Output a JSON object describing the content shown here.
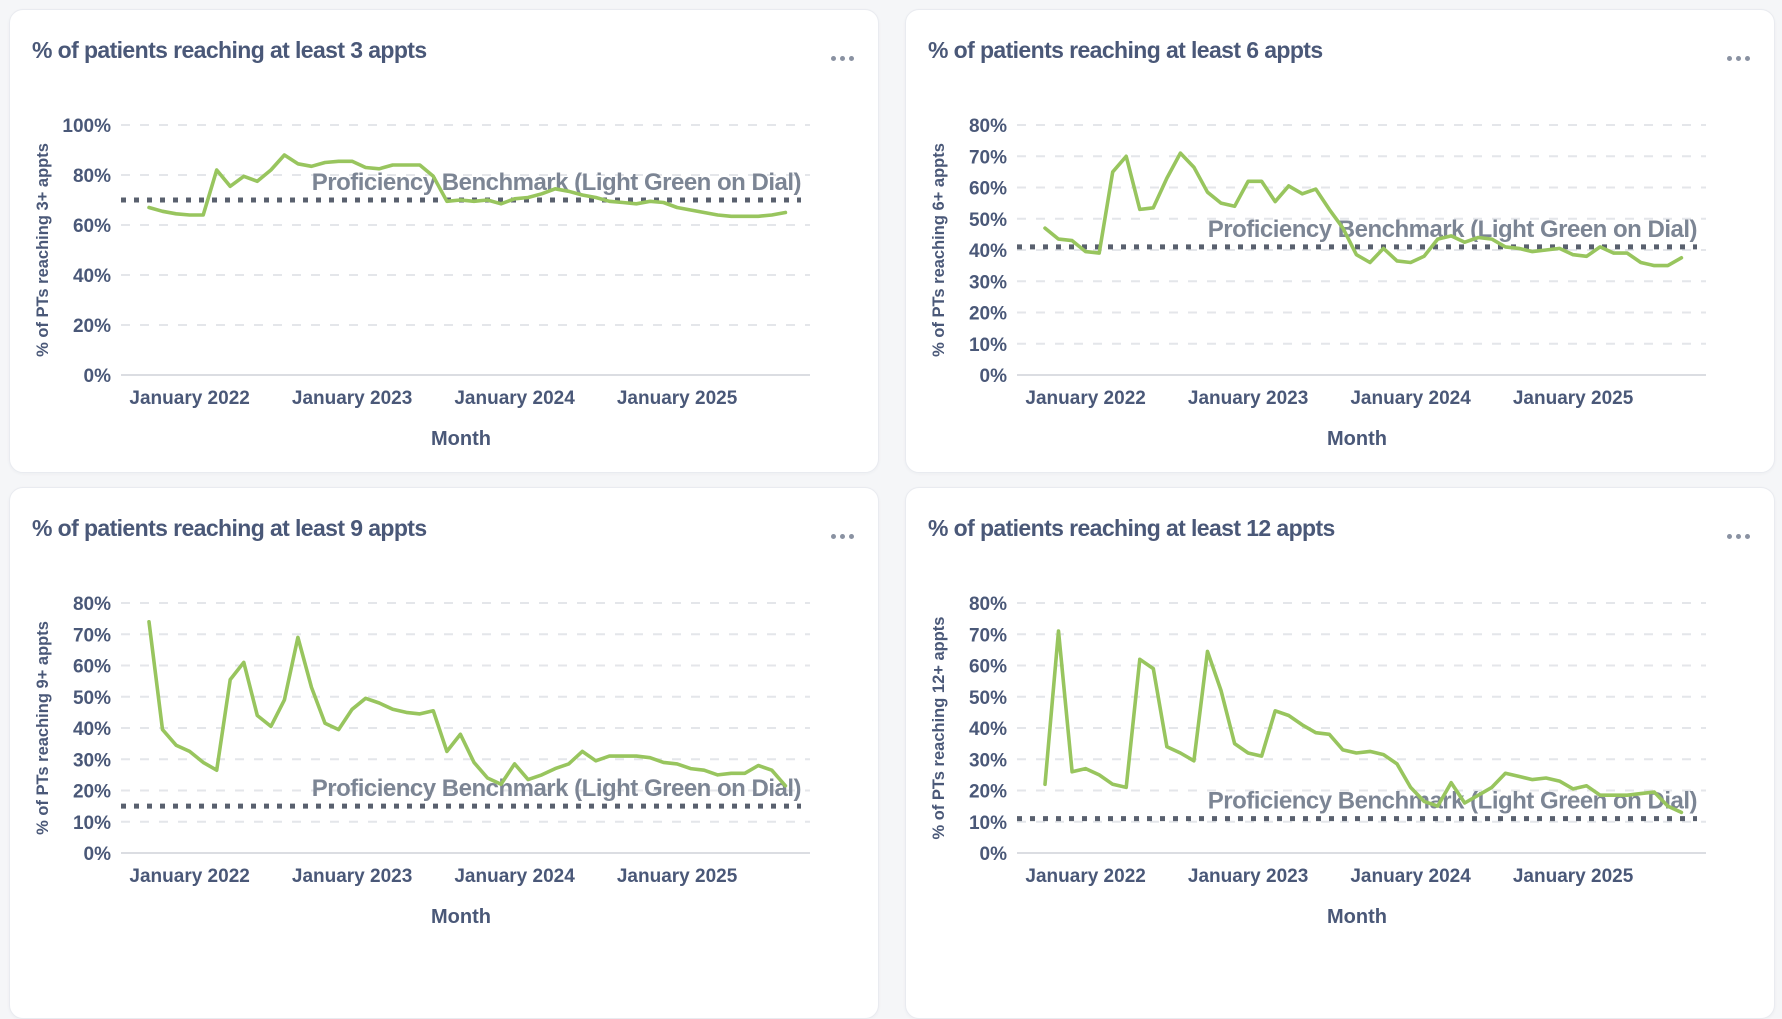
{
  "page": {
    "background": "#f5f6f8",
    "layout": "2x2-card-grid"
  },
  "colors": {
    "accent_line": "#98c55e",
    "heading_text": "#4a5878",
    "axis_text": "#4a5878",
    "benchmark_text": "#7c8594",
    "benchmark_dotted_line": "#59606e",
    "gridline": "#e4e6ea",
    "baseline": "#dbdde2",
    "card_background": "#ffffff",
    "menu_dots": "#8a92a2"
  },
  "cards": [
    {
      "title": "% of patients reaching at least 3 appts",
      "menu_icon": "ellipsis-menu-icon"
    },
    {
      "title": "% of patients reaching at least 6 appts",
      "menu_icon": "ellipsis-menu-icon"
    },
    {
      "title": "% of patients reaching at least 9 appts",
      "menu_icon": "ellipsis-menu-icon"
    },
    {
      "title": "% of patients reaching at least 12 appts",
      "menu_icon": "ellipsis-menu-icon"
    }
  ],
  "chart_data": [
    {
      "type": "line",
      "title": "% of patients reaching at least 3 appts",
      "xlabel": "Month",
      "ylabel": "% of PTs reaching 3+ appts",
      "ylim": [
        0,
        100
      ],
      "ytick_step": 20,
      "ytick_labels": [
        "0%",
        "20%",
        "40%",
        "60%",
        "80%",
        "100%"
      ],
      "x_tick_labels": [
        "January 2022",
        "January 2023",
        "January 2024",
        "January 2025"
      ],
      "x_tick_month_indices": [
        3,
        15,
        27,
        39
      ],
      "x_start_month": "2021-10",
      "n_points": 48,
      "grid": true,
      "legend": "none",
      "values": [
        67,
        65.5,
        64.5,
        64,
        64,
        82,
        75.5,
        79.5,
        77.5,
        82,
        88,
        84.5,
        83.5,
        85,
        85.5,
        85.5,
        83,
        82.5,
        84,
        84,
        84,
        79.5,
        69.5,
        70,
        69.5,
        70,
        68.5,
        70.5,
        71,
        72.5,
        74.5,
        73.5,
        72,
        71,
        69.5,
        69,
        68.5,
        69.5,
        69,
        67,
        66,
        65,
        64,
        63.5,
        63.5,
        63.5,
        64,
        65
      ],
      "benchmark": {
        "value": 70,
        "label": "Proficiency Benchmark (Light Green on Dial)"
      }
    },
    {
      "type": "line",
      "title": "% of patients reaching at least 6 appts",
      "xlabel": "Month",
      "ylabel": "% of PTs reaching 6+ appts",
      "ylim": [
        0,
        80
      ],
      "ytick_step": 10,
      "ytick_labels": [
        "0%",
        "10%",
        "20%",
        "30%",
        "40%",
        "50%",
        "60%",
        "70%",
        "80%"
      ],
      "x_tick_labels": [
        "January 2022",
        "January 2023",
        "January 2024",
        "January 2025"
      ],
      "x_tick_month_indices": [
        3,
        15,
        27,
        39
      ],
      "x_start_month": "2021-10",
      "n_points": 48,
      "grid": true,
      "legend": "none",
      "values": [
        47,
        43.5,
        43,
        39.5,
        39,
        65,
        70,
        53,
        53.5,
        63,
        71,
        66.5,
        58.5,
        55,
        54,
        62,
        62,
        55.5,
        60.5,
        58,
        59.5,
        53,
        47,
        38.5,
        36,
        40.5,
        36.5,
        36,
        38,
        43.5,
        44.5,
        42.5,
        44,
        43.5,
        41,
        40.5,
        39.5,
        40,
        40.5,
        38.5,
        38,
        41,
        39,
        39,
        36,
        35,
        35,
        37.5
      ],
      "benchmark": {
        "value": 41,
        "label": "Proficiency Benchmark (Light Green on Dial)"
      }
    },
    {
      "type": "line",
      "title": "% of patients reaching at least 9 appts",
      "xlabel": "Month",
      "ylabel": "% of PTs reaching 9+ appts",
      "ylim": [
        0,
        80
      ],
      "ytick_step": 10,
      "ytick_labels": [
        "0%",
        "10%",
        "20%",
        "30%",
        "40%",
        "50%",
        "60%",
        "70%",
        "80%"
      ],
      "x_tick_labels": [
        "January 2022",
        "January 2023",
        "January 2024",
        "January 2025"
      ],
      "x_tick_month_indices": [
        3,
        15,
        27,
        39
      ],
      "x_start_month": "2021-10",
      "n_points": 48,
      "grid": true,
      "legend": "none",
      "values": [
        74,
        39.5,
        34.5,
        32.5,
        29,
        26.5,
        55.5,
        61,
        44,
        40.5,
        49,
        69,
        53,
        41.5,
        39.5,
        46,
        49.5,
        48,
        46,
        45,
        44.5,
        45.5,
        32.5,
        38,
        29,
        24,
        22,
        28.5,
        23.5,
        25,
        27,
        28.5,
        32.5,
        29.5,
        31,
        31,
        31,
        30.5,
        29,
        28.5,
        27,
        26.5,
        25,
        25.5,
        25.5,
        28,
        26.5,
        21.5
      ],
      "benchmark": {
        "value": 15,
        "label": "Proficiency Benchmark (Light Green on Dial)"
      }
    },
    {
      "type": "line",
      "title": "% of patients reaching at least 12 appts",
      "xlabel": "Month",
      "ylabel": "% of PTs reaching 12+ appts",
      "ylim": [
        0,
        80
      ],
      "ytick_step": 10,
      "ytick_labels": [
        "0%",
        "10%",
        "20%",
        "30%",
        "40%",
        "50%",
        "60%",
        "70%",
        "80%"
      ],
      "x_tick_labels": [
        "January 2022",
        "January 2023",
        "January 2024",
        "January 2025"
      ],
      "x_tick_month_indices": [
        3,
        15,
        27,
        39
      ],
      "x_start_month": "2021-10",
      "n_points": 48,
      "grid": true,
      "legend": "none",
      "values": [
        22,
        71,
        26,
        27,
        25,
        22,
        21,
        62,
        59,
        34,
        32,
        29.5,
        64.5,
        52,
        35,
        32,
        31,
        45.5,
        44,
        41,
        38.5,
        38,
        33,
        32,
        32.5,
        31.5,
        28.5,
        21,
        16.5,
        15,
        22.5,
        16,
        18.5,
        21,
        25.5,
        24.5,
        23.5,
        24,
        23,
        20.5,
        21.5,
        18.5,
        18.5,
        18.5,
        19,
        19.5,
        15,
        13
      ],
      "benchmark": {
        "value": 11,
        "label": "Proficiency Benchmark (Light Green on Dial)"
      }
    }
  ]
}
